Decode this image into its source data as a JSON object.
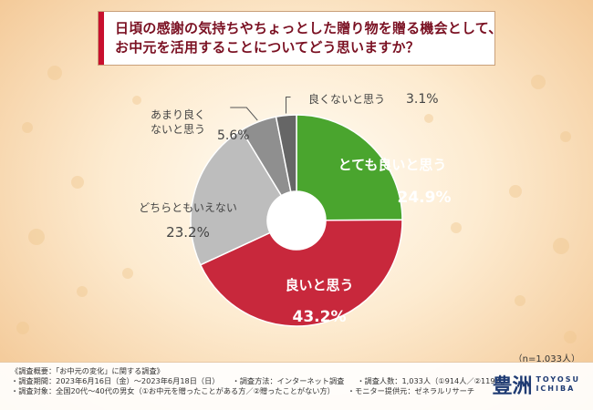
{
  "question": {
    "line1": "日頃の感謝の気持ちやちょっとした贈り物を贈る機会として、",
    "line2": "お中元を活用することについてどう思いますか？"
  },
  "chart_data": {
    "type": "pie",
    "donut": true,
    "slices": [
      {
        "label": "とても良いと思う",
        "value": 24.9,
        "value_text": "24.9%",
        "color": "#4aa52e"
      },
      {
        "label": "良いと思う",
        "value": 43.2,
        "value_text": "43.2%",
        "color": "#c8283c"
      },
      {
        "label": "どちらともいえない",
        "value": 23.2,
        "value_text": "23.2%",
        "color": "#bdbdbd"
      },
      {
        "label": "あまり良くないと思う",
        "label_lines": [
          "あまり良く",
          "ないと思う"
        ],
        "value": 5.6,
        "value_text": "5.6%",
        "color": "#8f8f8f"
      },
      {
        "label": "良くないと思う",
        "value": 3.1,
        "value_text": "3.1%",
        "color": "#666666"
      }
    ]
  },
  "n_note": "（n=1,033人）",
  "footer": {
    "summary": "《調査概要：「お中元の変化」に関する調査》",
    "period": "・調査期間：2023年6月16日（金）〜2023年6月18日（日）",
    "method": "・調査方法：インターネット調査",
    "respondents": "・調査人数：1,033人（①914人／②119人）",
    "target": "・調査対象：全国20代〜40代の男女（①お中元を贈ったことがある方／②贈ったことがない方）",
    "provider": "・モニター提供元：ゼネラルリサーチ"
  },
  "brand": {
    "mark": "豊洲",
    "line1": "TOYOSU",
    "line2": "ICHIBA",
    "color": "#1f3b73"
  }
}
